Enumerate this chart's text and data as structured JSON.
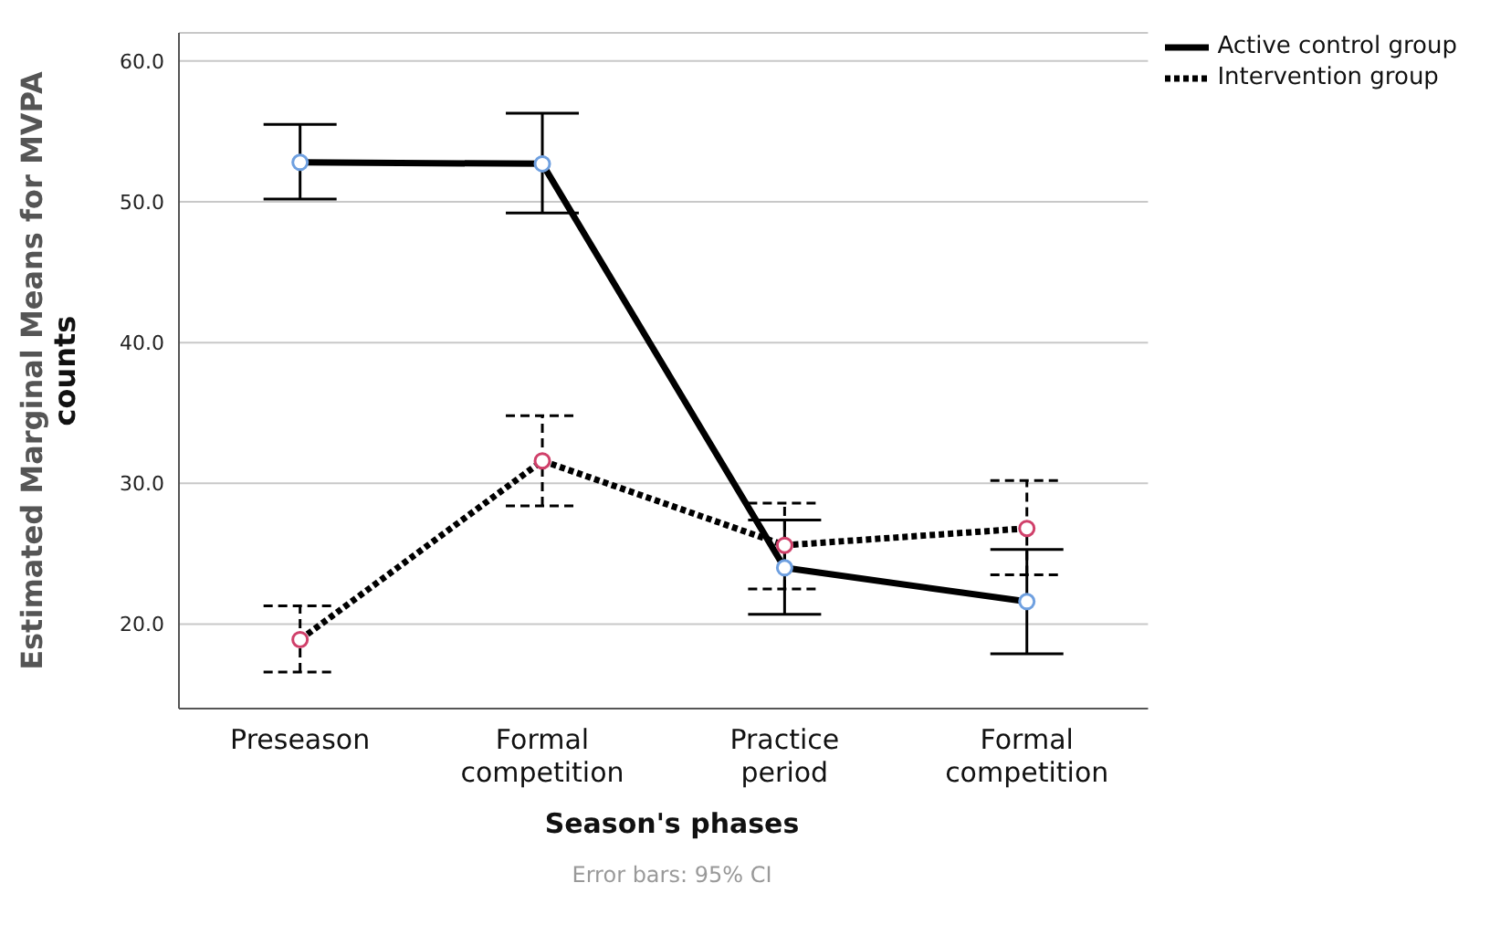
{
  "chart_data": {
    "type": "line",
    "xlabel": "Season's phases",
    "ylabel": "Estimated Marginal Means for MVPA counts",
    "categories": [
      "Preseason",
      "Formal competition",
      "Practice period",
      "Formal competition"
    ],
    "series": [
      {
        "name": "Active control group",
        "color": "#000000",
        "line_style": "solid",
        "values": [
          52.8,
          52.7,
          24.0,
          21.6
        ],
        "errors": [
          [
            50.2,
            55.5
          ],
          [
            49.2,
            56.3
          ],
          [
            20.7,
            27.4
          ],
          [
            17.9,
            25.3
          ]
        ]
      },
      {
        "name": "Intervention group",
        "color": "#000000",
        "line_style": "dotted",
        "values": [
          18.9,
          31.6,
          25.6,
          26.8
        ],
        "errors": [
          [
            16.6,
            21.3
          ],
          [
            28.4,
            34.8
          ],
          [
            22.5,
            28.6
          ],
          [
            23.5,
            30.2
          ]
        ]
      }
    ],
    "ylim": [
      14,
      62
    ],
    "yticks": [
      {
        "value": 20,
        "label": "20.0"
      },
      {
        "value": 30,
        "label": "30.0"
      },
      {
        "value": 40,
        "label": "40.0"
      },
      {
        "value": 50,
        "label": "50.0"
      },
      {
        "value": 60,
        "label": "60.0"
      }
    ],
    "grid": "y",
    "legend": "top right",
    "marker": "circle",
    "annotations": [
      "Error bars: 95% CI"
    ]
  }
}
